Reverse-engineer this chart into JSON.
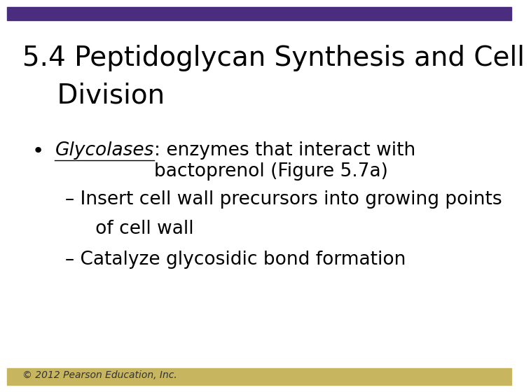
{
  "title_line1": "5.4 Peptidoglycan Synthesis and Cell",
  "title_line2": "    Division",
  "top_bar_color": "#4B2D7F",
  "bottom_bar_color": "#C8B560",
  "background_color": "#FFFFFF",
  "title_color": "#000000",
  "title_fontsize": 28,
  "body_fontsize": 19,
  "sub_fontsize": 19,
  "copyright_text": "© 2012 Pearson Education, Inc.",
  "copyright_fontsize": 10,
  "copyright_color": "#333333",
  "bullet_text_italic": "Glycolases",
  "bullet_text_rest": ": enzymes that interact with\nbactoprenol (Figure 5.7a)",
  "sub_bullet1_line1": "– Insert cell wall precursors into growing points",
  "sub_bullet1_line2": "   of cell wall",
  "sub_bullet2": "– Catalyze glycosidic bond formation"
}
